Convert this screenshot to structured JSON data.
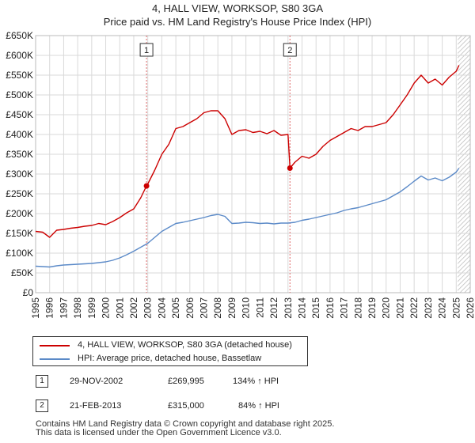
{
  "title": "4, HALL VIEW, WORKSOP, S80 3GA",
  "subtitle": "Price paid vs. HM Land Registry's House Price Index (HPI)",
  "colors": {
    "property": "#cc0000",
    "hpi": "#5b8ac8",
    "grid": "#d9d9d9",
    "band": "#dce6f2"
  },
  "chart_data": {
    "type": "line",
    "title": "4, HALL VIEW, WORKSOP, S80 3GA",
    "subtitle": "Price paid vs. HM Land Registry's House Price Index (HPI)",
    "xlim": [
      1995,
      2026
    ],
    "ylim": [
      0,
      650000
    ],
    "x_ticks": [
      "1995",
      "1996",
      "1997",
      "1998",
      "1999",
      "2000",
      "2001",
      "2002",
      "2003",
      "2004",
      "2005",
      "2006",
      "2007",
      "2008",
      "2009",
      "2010",
      "2011",
      "2012",
      "2013",
      "2014",
      "2015",
      "2016",
      "2017",
      "2018",
      "2019",
      "2020",
      "2021",
      "2022",
      "2023",
      "2024",
      "2025",
      "2026"
    ],
    "y_ticks": [
      "£0",
      "£50K",
      "£100K",
      "£150K",
      "£200K",
      "£250K",
      "£300K",
      "£350K",
      "£400K",
      "£450K",
      "£500K",
      "£550K",
      "£600K",
      "£650K"
    ],
    "grid": true,
    "series": [
      {
        "name": "4, HALL VIEW, WORKSOP, S80 3GA (detached house)",
        "color": "#cc0000",
        "x": [
          1995,
          1995.5,
          1996,
          1996.5,
          1997,
          1997.5,
          1998,
          1998.5,
          1999,
          1999.5,
          2000,
          2000.5,
          2001,
          2001.5,
          2002,
          2002.5,
          2002.91,
          2003,
          2003.5,
          2004,
          2004.5,
          2005,
          2005.5,
          2006,
          2006.5,
          2007,
          2007.5,
          2008,
          2008.5,
          2009,
          2009.5,
          2010,
          2010.5,
          2011,
          2011.5,
          2012,
          2012.5,
          2013.0,
          2013.14,
          2013.5,
          2014,
          2014.5,
          2015,
          2015.5,
          2016,
          2016.5,
          2017,
          2017.5,
          2018,
          2018.5,
          2019,
          2019.5,
          2020,
          2020.5,
          2021,
          2021.5,
          2022,
          2022.5,
          2023,
          2023.5,
          2024,
          2024.5,
          2025,
          2025.2
        ],
        "values": [
          155000,
          153000,
          140000,
          158000,
          160000,
          163000,
          165000,
          168000,
          170000,
          175000,
          172000,
          180000,
          190000,
          202000,
          212000,
          240000,
          269995,
          275000,
          310000,
          350000,
          375000,
          415000,
          420000,
          430000,
          440000,
          455000,
          460000,
          460000,
          440000,
          400000,
          410000,
          412000,
          405000,
          408000,
          402000,
          410000,
          398000,
          400000,
          315000,
          330000,
          345000,
          340000,
          350000,
          370000,
          385000,
          395000,
          405000,
          415000,
          410000,
          420000,
          420000,
          425000,
          430000,
          450000,
          475000,
          500000,
          530000,
          550000,
          530000,
          540000,
          525000,
          545000,
          560000,
          575000
        ]
      },
      {
        "name": "HPI: Average price, detached house, Bassetlaw",
        "color": "#5b8ac8",
        "x": [
          1995,
          1995.5,
          1996,
          1996.5,
          1997,
          1997.5,
          1998,
          1998.5,
          1999,
          1999.5,
          2000,
          2000.5,
          2001,
          2001.5,
          2002,
          2002.5,
          2003,
          2003.5,
          2004,
          2004.5,
          2005,
          2005.5,
          2006,
          2006.5,
          2007,
          2007.5,
          2008,
          2008.5,
          2009,
          2009.5,
          2010,
          2010.5,
          2011,
          2011.5,
          2012,
          2012.5,
          2013,
          2013.5,
          2014,
          2014.5,
          2015,
          2015.5,
          2016,
          2016.5,
          2017,
          2017.5,
          2018,
          2018.5,
          2019,
          2019.5,
          2020,
          2020.5,
          2021,
          2021.5,
          2022,
          2022.5,
          2023,
          2023.5,
          2024,
          2024.5,
          2025,
          2025.2
        ],
        "values": [
          67000,
          66000,
          65000,
          68000,
          70000,
          71000,
          72000,
          73000,
          74000,
          76000,
          78000,
          82000,
          88000,
          96000,
          105000,
          115000,
          125000,
          140000,
          155000,
          165000,
          175000,
          178000,
          182000,
          186000,
          190000,
          195000,
          198000,
          193000,
          175000,
          176000,
          178000,
          177000,
          175000,
          176000,
          174000,
          176000,
          176000,
          178000,
          183000,
          186000,
          190000,
          194000,
          198000,
          202000,
          208000,
          212000,
          215000,
          220000,
          225000,
          230000,
          235000,
          245000,
          255000,
          268000,
          282000,
          295000,
          285000,
          290000,
          283000,
          292000,
          305000,
          315000
        ]
      }
    ],
    "annotations": [
      {
        "label": "1",
        "x": 2002.91,
        "y": 269995
      },
      {
        "label": "2",
        "x": 2013.14,
        "y": 315000
      }
    ],
    "legend_position": "below"
  },
  "legend": {
    "property_label": "4, HALL VIEW, WORKSOP, S80 3GA (detached house)",
    "hpi_label": "HPI: Average price, detached house, Bassetlaw"
  },
  "transactions": [
    {
      "num": "1",
      "date": "29-NOV-2002",
      "price": "£269,995",
      "hpi": "134% ↑ HPI"
    },
    {
      "num": "2",
      "date": "21-FEB-2013",
      "price": "£315,000",
      "hpi": "84% ↑ HPI"
    }
  ],
  "footer": {
    "line1": "Contains HM Land Registry data © Crown copyright and database right 2025.",
    "line2": "This data is licensed under the Open Government Licence v3.0."
  }
}
